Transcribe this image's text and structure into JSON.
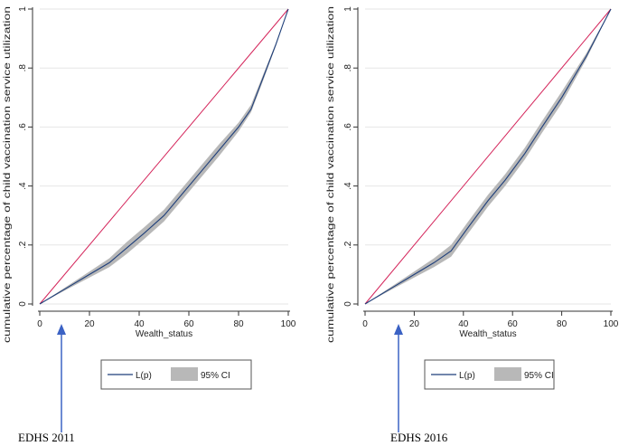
{
  "chart_data": [
    {
      "type": "line",
      "xlabel": "Wealth_status",
      "ylabel": "cumulative percentage of child vaccination service utilization",
      "xlim": [
        0,
        100
      ],
      "ylim": [
        0,
        1
      ],
      "xticks": [
        "0",
        "20",
        "40",
        "60",
        "80",
        "100"
      ],
      "yticks": [
        "0",
        ".2",
        ".4",
        ".6",
        ".8",
        "1"
      ],
      "legend": [
        "L(p)",
        "95% CI"
      ],
      "legend_position": "bottom-center",
      "grid": true,
      "caption": "EDHS 2011",
      "series": [
        {
          "name": "L(p)",
          "x": [
            0,
            10,
            20,
            28,
            35,
            42,
            50,
            57,
            65,
            72,
            80,
            85,
            90,
            95,
            100
          ],
          "y": [
            0,
            0.05,
            0.1,
            0.14,
            0.19,
            0.24,
            0.3,
            0.37,
            0.45,
            0.52,
            0.6,
            0.66,
            0.77,
            0.88,
            1.0
          ]
        },
        {
          "name": "95% CI",
          "x": [
            0,
            10,
            20,
            28,
            35,
            42,
            50,
            57,
            65,
            72,
            80,
            85,
            90,
            95,
            100
          ],
          "lower": [
            0,
            0.045,
            0.09,
            0.125,
            0.17,
            0.22,
            0.28,
            0.35,
            0.43,
            0.5,
            0.585,
            0.65,
            0.76,
            0.875,
            1.0
          ],
          "upper": [
            0,
            0.055,
            0.11,
            0.155,
            0.21,
            0.26,
            0.32,
            0.39,
            0.47,
            0.54,
            0.615,
            0.675,
            0.78,
            0.885,
            1.0
          ]
        }
      ],
      "equality_line": {
        "x": [
          0,
          100
        ],
        "y": [
          0,
          1
        ]
      }
    },
    {
      "type": "line",
      "xlabel": "Wealth_status",
      "ylabel": "cumulative percentage of child vaccination service utilization",
      "xlim": [
        0,
        100
      ],
      "ylim": [
        0,
        1
      ],
      "xticks": [
        "0",
        "20",
        "40",
        "60",
        "80",
        "100"
      ],
      "yticks": [
        "0",
        ".2",
        ".4",
        ".6",
        ".8",
        "1"
      ],
      "legend": [
        "L(p)",
        "95% CI"
      ],
      "legend_position": "bottom-center",
      "grid": true,
      "caption": "EDHS 2016",
      "series": [
        {
          "name": "L(p)",
          "x": [
            0,
            10,
            20,
            28,
            35,
            42,
            50,
            57,
            65,
            72,
            80,
            85,
            90,
            95,
            100
          ],
          "y": [
            0,
            0.05,
            0.1,
            0.14,
            0.18,
            0.26,
            0.35,
            0.42,
            0.51,
            0.6,
            0.7,
            0.77,
            0.84,
            0.92,
            1.0
          ]
        },
        {
          "name": "95% CI",
          "x": [
            0,
            10,
            20,
            28,
            35,
            42,
            50,
            57,
            65,
            72,
            80,
            85,
            90,
            95,
            100
          ],
          "lower": [
            0,
            0.045,
            0.09,
            0.125,
            0.16,
            0.24,
            0.33,
            0.4,
            0.49,
            0.58,
            0.68,
            0.755,
            0.83,
            0.915,
            1.0
          ],
          "upper": [
            0,
            0.055,
            0.11,
            0.155,
            0.2,
            0.28,
            0.37,
            0.44,
            0.53,
            0.62,
            0.72,
            0.785,
            0.85,
            0.925,
            1.0
          ]
        }
      ],
      "equality_line": {
        "x": [
          0,
          100
        ],
        "y": [
          0,
          1
        ]
      }
    }
  ],
  "colors": {
    "lp_line": "#1f3f7a",
    "ci_band": "#b8b8b8",
    "equality_line": "#d4245a",
    "grid": "#e6e6e6",
    "arrow": "#3b62c4"
  }
}
